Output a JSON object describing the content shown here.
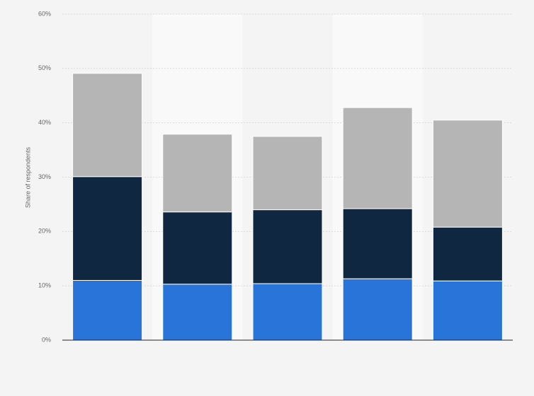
{
  "chart_data": {
    "type": "stacked-bar",
    "y_label": "Share of respondents",
    "categories": [
      null,
      null,
      null,
      null,
      null
    ],
    "series": [
      {
        "color": "#2874d9",
        "values": [
          11.0,
          10.3,
          10.4,
          11.3,
          10.9
        ]
      },
      {
        "color": "#0f2740",
        "values": [
          19.1,
          13.3,
          13.6,
          12.9,
          9.9
        ]
      },
      {
        "color": "#b5b5b5",
        "values": [
          19.0,
          14.3,
          13.5,
          18.6,
          19.7
        ]
      }
    ],
    "ylim": [
      0,
      60
    ],
    "yticks": [
      {
        "value": 0,
        "label": "0%"
      },
      {
        "value": 10,
        "label": "10%"
      },
      {
        "value": 20,
        "label": "20%"
      },
      {
        "value": 30,
        "label": "30%"
      },
      {
        "value": 40,
        "label": "40%"
      },
      {
        "value": 50,
        "label": "50%"
      },
      {
        "value": 60,
        "label": "60%"
      }
    ],
    "grid": true
  }
}
